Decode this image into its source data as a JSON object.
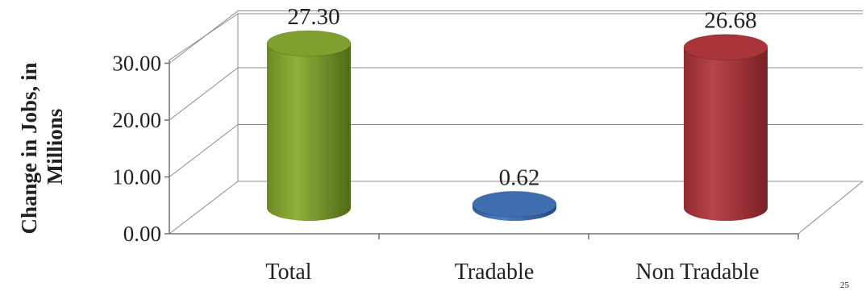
{
  "chart_data": {
    "type": "bar",
    "style": "3d-cylinder",
    "categories": [
      "Total",
      "Tradable",
      "Non Tradable"
    ],
    "values": [
      27.3,
      0.62,
      26.68
    ],
    "data_labels": [
      "27.30",
      "0.62",
      "26.68"
    ],
    "colors": [
      "#7f9f2e",
      "#3f6eb0",
      "#a9343a"
    ],
    "ylabel_lines": [
      "Change in Jobs, in",
      "Millions"
    ],
    "yticks": [
      "0.00",
      "10.00",
      "20.00",
      "30.00"
    ],
    "ytick_values": [
      0,
      10,
      20,
      30
    ],
    "ylim": [
      0,
      30
    ],
    "grid": true,
    "legend": "none"
  },
  "page_number": "25"
}
